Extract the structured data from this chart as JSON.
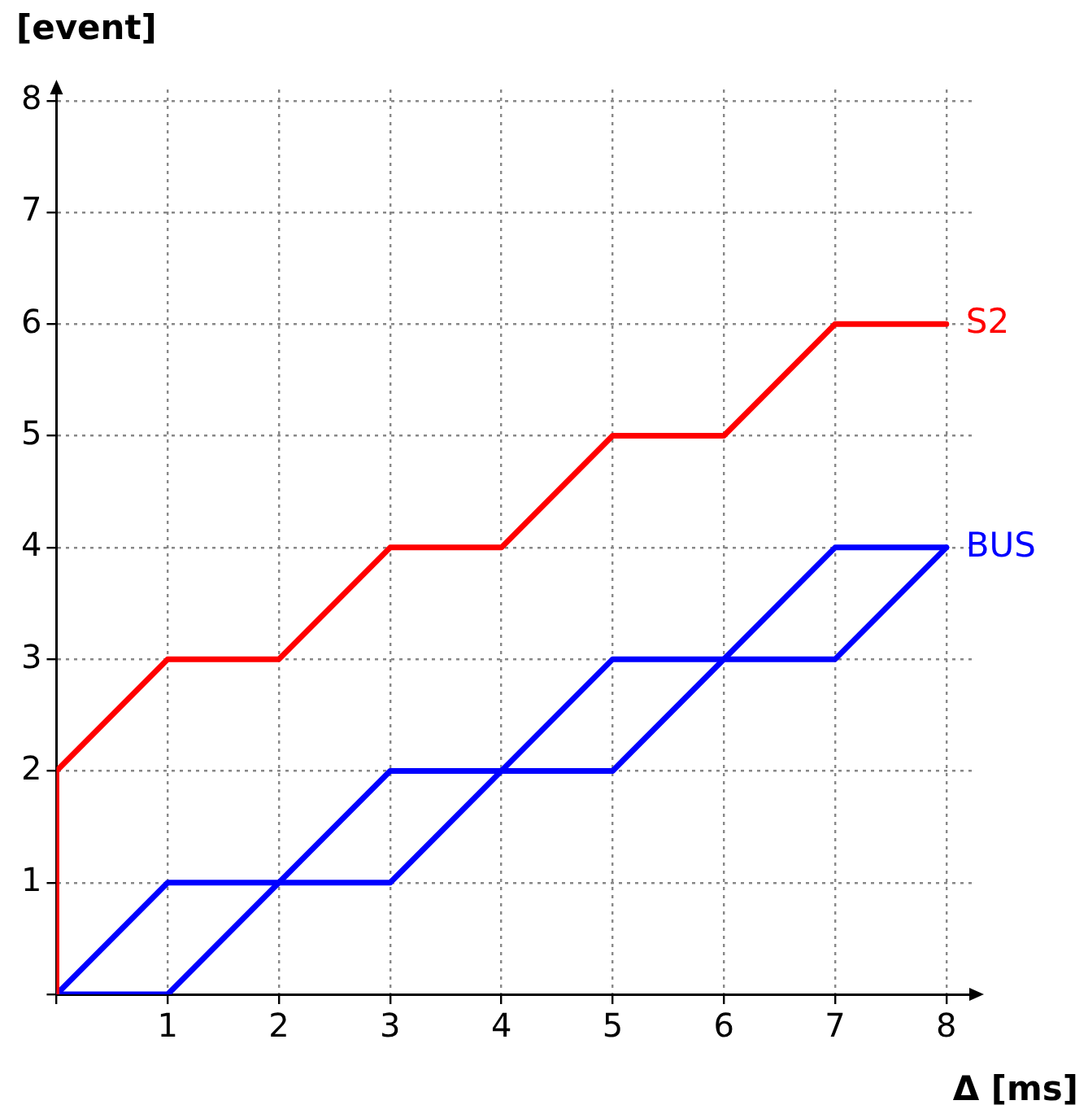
{
  "chart_data": {
    "type": "line",
    "xlabel": "Δ [ms]",
    "ylabel": "[event]",
    "xlim": [
      0,
      8.25
    ],
    "ylim": [
      0,
      8.1
    ],
    "xticks": [
      {
        "value": 0,
        "label": null
      },
      1,
      2,
      3,
      4,
      5,
      6,
      7,
      8
    ],
    "yticks": [
      {
        "value": 0,
        "label": null
      },
      1,
      2,
      3,
      4,
      5,
      6,
      7,
      8
    ],
    "grid": true,
    "legend": false,
    "marker": "none",
    "line_style": "solid",
    "series": [
      {
        "name": "S2",
        "color": "#ff0000",
        "x": [
          0,
          0,
          1,
          2,
          3,
          4,
          5,
          6,
          7,
          8
        ],
        "values": [
          0,
          2,
          3,
          3,
          4,
          4,
          5,
          5,
          6,
          6
        ]
      },
      {
        "name": "BUS",
        "color": "#0000ff",
        "x": [
          0,
          1,
          3,
          5,
          7,
          8
        ],
        "values": [
          0,
          1,
          1,
          3,
          3,
          4
        ]
      },
      {
        "color": "#0000ff",
        "x": [
          0,
          1,
          3,
          5,
          7,
          8
        ],
        "values": [
          0,
          0,
          2,
          2,
          4,
          4
        ]
      }
    ]
  }
}
